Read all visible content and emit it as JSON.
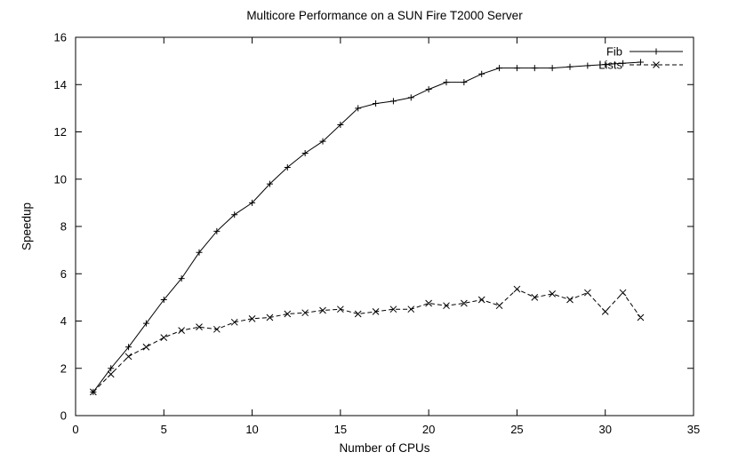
{
  "chart_data": {
    "type": "line",
    "title": "Multicore Performance on a SUN Fire T2000 Server",
    "xlabel": "Number of CPUs",
    "ylabel": "Speedup",
    "xlim": [
      0,
      35
    ],
    "ylim": [
      0,
      16
    ],
    "xticks": [
      0,
      5,
      10,
      15,
      20,
      25,
      30,
      35
    ],
    "yticks": [
      0,
      2,
      4,
      6,
      8,
      10,
      12,
      14,
      16
    ],
    "grid": false,
    "legend_position": "top-right-inside",
    "background": "#ffffff",
    "axis_color": "#000000",
    "x": [
      1,
      2,
      3,
      4,
      5,
      6,
      7,
      8,
      9,
      10,
      11,
      12,
      13,
      14,
      15,
      16,
      17,
      18,
      19,
      20,
      21,
      22,
      23,
      24,
      25,
      26,
      27,
      28,
      29,
      30,
      31,
      32
    ],
    "series": [
      {
        "name": "Fib",
        "marker": "plus",
        "line": "solid",
        "color": "#000000",
        "values": [
          1.0,
          2.0,
          2.9,
          3.9,
          4.9,
          5.8,
          6.9,
          7.8,
          8.5,
          9.0,
          9.8,
          10.5,
          11.1,
          11.6,
          12.3,
          13.0,
          13.2,
          13.3,
          13.45,
          13.8,
          14.1,
          14.1,
          14.45,
          14.7,
          14.7,
          14.7,
          14.7,
          14.75,
          14.8,
          14.85,
          14.9,
          14.95
        ]
      },
      {
        "name": "Lists",
        "marker": "cross",
        "line": "dashed",
        "color": "#000000",
        "values": [
          1.0,
          1.75,
          2.5,
          2.9,
          3.3,
          3.6,
          3.75,
          3.65,
          3.95,
          4.1,
          4.15,
          4.3,
          4.35,
          4.45,
          4.5,
          4.3,
          4.4,
          4.5,
          4.5,
          4.75,
          4.65,
          4.75,
          4.9,
          4.65,
          5.35,
          5.0,
          5.15,
          4.9,
          5.2,
          4.4,
          5.2,
          4.15
        ]
      }
    ]
  }
}
